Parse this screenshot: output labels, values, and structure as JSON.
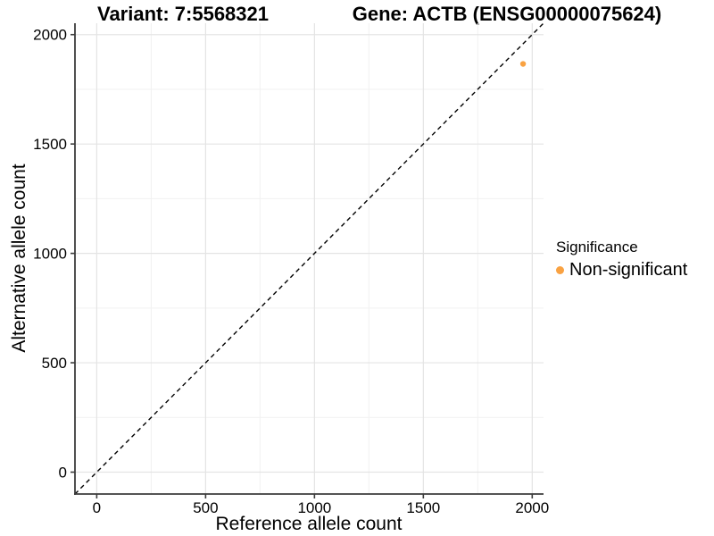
{
  "header": {
    "variant_title": "Variant: 7:5568321",
    "gene_title": "Gene: ACTB (ENSG00000075624)"
  },
  "legend": {
    "title": "Significance",
    "items": [
      {
        "label": "Non-significant",
        "marker": "circle-icon"
      }
    ]
  },
  "chart_data": {
    "type": "scatter",
    "title": "Variant: 7:5568321 | Gene: ACTB (ENSG00000075624)",
    "xlabel": "Reference allele count",
    "ylabel": "Alternative allele count",
    "xlim": [
      -100,
      2052
    ],
    "ylim": [
      -100,
      2052
    ],
    "x_ticks": [
      0,
      500,
      1000,
      1500,
      2000
    ],
    "y_ticks": [
      0,
      500,
      1000,
      1500,
      2000
    ],
    "x_minor_ticks": [
      250,
      750,
      1250,
      1750
    ],
    "y_minor_ticks": [
      250,
      750,
      1250,
      1750
    ],
    "grid": true,
    "legend_position": "right",
    "series": [
      {
        "name": "Non-significant",
        "color": "#F9A242",
        "points": [
          {
            "x": 1958,
            "y": 1866
          }
        ]
      }
    ],
    "reference_line": {
      "type": "identity",
      "slope": 1,
      "intercept": 0,
      "style": "dashed",
      "color": "#000000"
    }
  },
  "style": {
    "major_grid_color": "#e4e4e4",
    "minor_grid_color": "#f1f1f1",
    "axis_line_color": "#3c3c3c",
    "background": "#ffffff"
  }
}
